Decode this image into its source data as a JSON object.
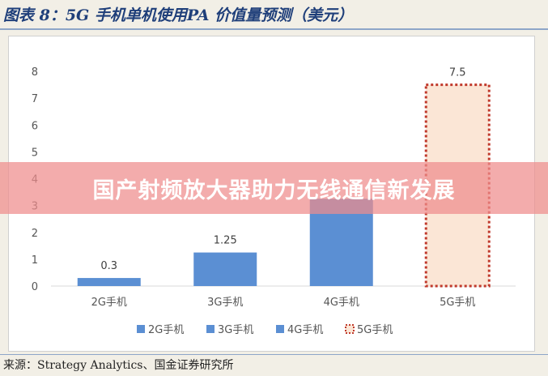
{
  "figure": {
    "title": "图表 8：5G 手机单机使用PA 价值量预测（美元）",
    "source": "来源：Strategy Analytics、国金证券研究所"
  },
  "banner": {
    "text": "国产射频放大器助力无线通信新发展"
  },
  "chart_data": {
    "type": "bar",
    "categories": [
      "2G手机",
      "3G手机",
      "4G手机",
      "5G手机"
    ],
    "values": [
      0.3,
      1.25,
      3.25,
      7.5
    ],
    "data_labels": [
      "0.3",
      "1.25",
      "",
      "7.5"
    ],
    "ylim": [
      0,
      8
    ],
    "yticks": [
      "0",
      "1",
      "2",
      "3",
      "4",
      "5",
      "6",
      "7",
      "8"
    ],
    "grid": false,
    "legend_position": "bottom",
    "legend": [
      "2G手机",
      "3G手机",
      "4G手机",
      "5G手机"
    ],
    "colors": {
      "bar": "#5b8fd3",
      "forecast_fill": "#fbe6d6",
      "forecast_border": "#c0392b",
      "axis": "#d9d9d9",
      "text": "#555555"
    }
  }
}
